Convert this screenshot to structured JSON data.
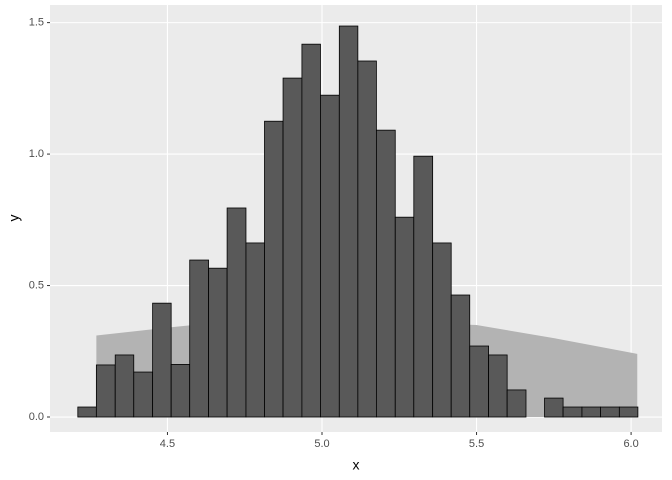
{
  "chart_data": {
    "type": "histogram",
    "x_label": "x",
    "y_label": "y",
    "bins": [
      4.21,
      4.27,
      4.331,
      4.391,
      4.452,
      4.512,
      4.572,
      4.633,
      4.693,
      4.754,
      4.814,
      4.874,
      4.935,
      4.995,
      5.056,
      5.116,
      5.176,
      5.237,
      5.297,
      5.358,
      5.418,
      5.478,
      5.539,
      5.599,
      5.66,
      5.72,
      5.78,
      5.841,
      5.901,
      5.962,
      6.022
    ],
    "values": [
      0.038,
      0.198,
      0.236,
      0.171,
      0.433,
      0.2,
      0.597,
      0.566,
      0.795,
      0.662,
      1.125,
      1.289,
      1.418,
      1.224,
      1.487,
      1.354,
      1.091,
      0.76,
      0.992,
      0.662,
      0.464,
      0.27,
      0.236,
      0.103,
      0,
      0.072,
      0.038,
      0.038,
      0.038,
      0.038
    ],
    "color": "#595959",
    "area": {
      "x": [
        4.27,
        4.5,
        4.75,
        5.0,
        5.25,
        5.5,
        5.75,
        6.02
      ],
      "values": [
        0.31,
        0.34,
        0.37,
        0.37,
        0.36,
        0.35,
        0.3,
        0.24
      ],
      "color": "#b3b3b3"
    },
    "xlim": [
      4.12,
      6.1
    ],
    "ylim": [
      -0.057,
      1.567
    ],
    "xticks": [
      4.5,
      {
        "value": 5,
        "label": "5.0"
      },
      5.5,
      {
        "value": 6,
        "label": "6.0"
      }
    ],
    "yticks": [
      {
        "value": 0,
        "label": "0.0"
      },
      0.5,
      {
        "value": 1,
        "label": "1.0"
      },
      1.5
    ],
    "grid": true
  }
}
